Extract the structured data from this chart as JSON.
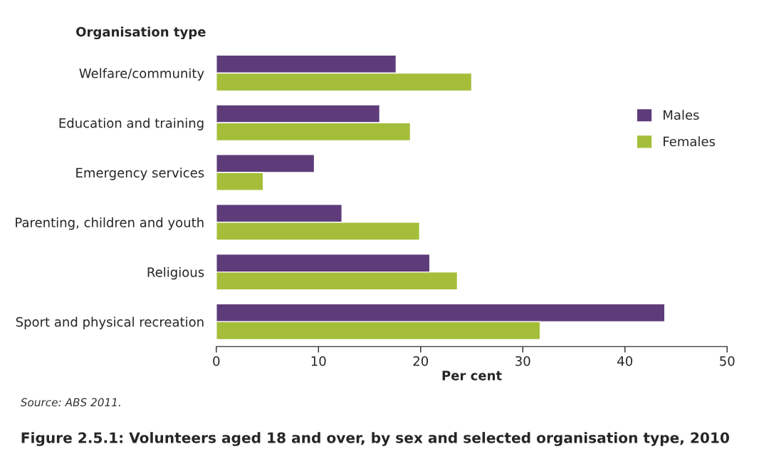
{
  "chart_data": {
    "type": "bar",
    "orientation": "horizontal",
    "title": "Figure 2.5.1: Volunteers aged 18 and over, by sex and selected organisation type, 2010",
    "ylabel": "Organisation type",
    "xlabel": "Per cent",
    "categories": [
      "Welfare/community",
      "Education and training",
      "Emergency services",
      "Parenting, children and youth",
      "Religious",
      "Sport and physical recreation"
    ],
    "series": [
      {
        "name": "Males",
        "color": "#5e3c7a",
        "values": [
          17.6,
          16.0,
          9.6,
          12.3,
          20.9,
          43.9
        ]
      },
      {
        "name": "Females",
        "color": "#a4be3a",
        "values": [
          25.0,
          19.0,
          4.6,
          19.9,
          23.6,
          31.7
        ]
      }
    ],
    "xlim": [
      0,
      50
    ],
    "xticks": [
      0,
      10,
      20,
      30,
      40,
      50
    ],
    "grid": false,
    "legend": "right",
    "annotations": [
      "Source: ABS 2011."
    ]
  }
}
